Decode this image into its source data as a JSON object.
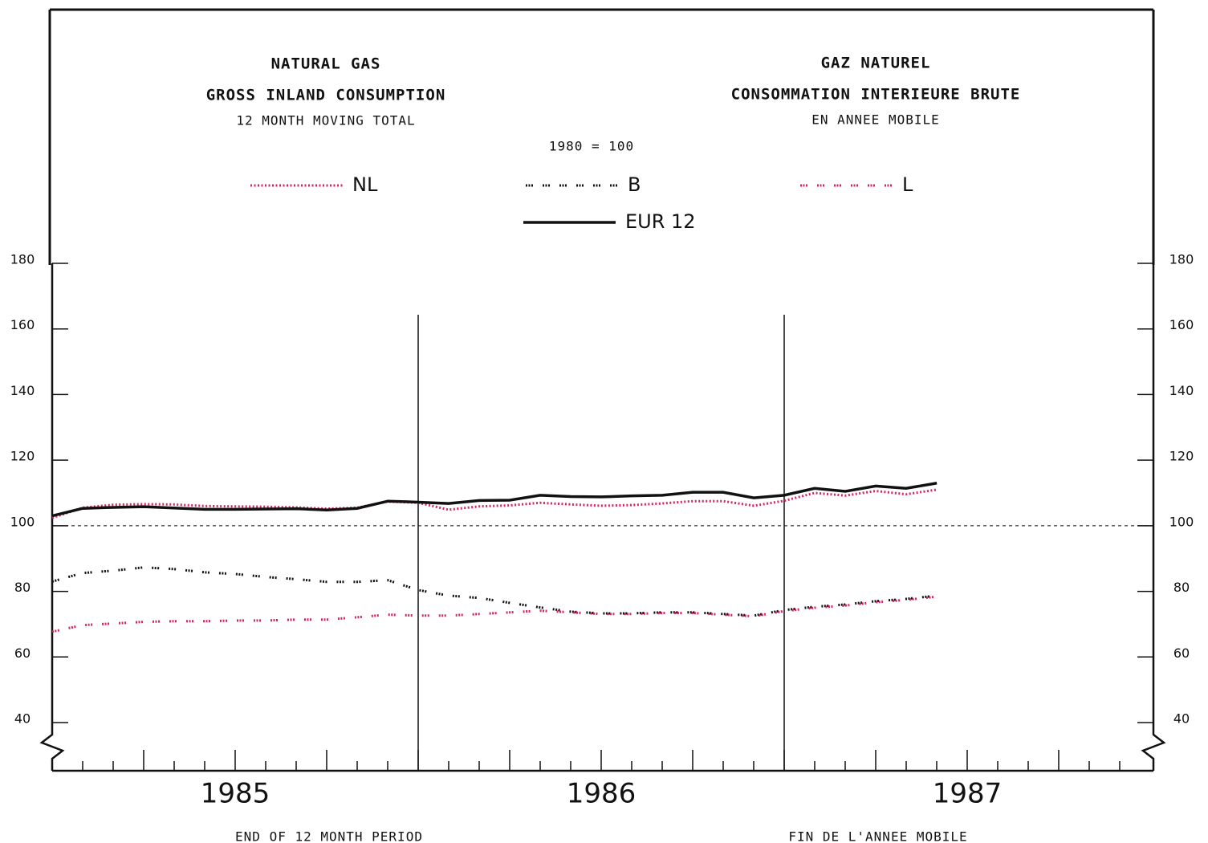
{
  "chart_data": {
    "type": "line",
    "title_en": "NATURAL GAS",
    "subtitle_en": "GROSS INLAND CONSUMPTION",
    "note_en": "12 MONTH MOVING TOTAL",
    "title_fr": "GAZ NATUREL",
    "subtitle_fr": "CONSOMMATION INTERIEURE BRUTE",
    "note_fr": "EN ANNEE MOBILE",
    "base": "1980 = 100",
    "xlabel_en": "END OF 12 MONTH PERIOD",
    "xlabel_fr": "FIN DE L'ANNEE MOBILE",
    "x": [
      1985,
      1985.083,
      1985.167,
      1985.25,
      1985.333,
      1985.417,
      1985.5,
      1985.583,
      1985.667,
      1985.75,
      1985.833,
      1985.917,
      1986,
      1986.083,
      1986.167,
      1986.25,
      1986.333,
      1986.417,
      1986.5,
      1986.583,
      1986.667,
      1986.75,
      1986.833,
      1986.917,
      1987,
      1987.083,
      1987.167,
      1987.25,
      1987.333,
      1987.417
    ],
    "series": [
      {
        "name": "NL",
        "color": "#d8245e",
        "style": "fine-plus",
        "values": [
          102.4,
          105.5,
          106.4,
          106.6,
          106.5,
          106.0,
          105.9,
          105.8,
          105.6,
          105.2,
          105.5,
          107.4,
          107.0,
          104.9,
          105.9,
          106.2,
          107.0,
          106.5,
          106.1,
          106.3,
          106.8,
          107.5,
          107.5,
          106.1,
          107.6,
          110.0,
          109.2,
          110.6,
          109.6,
          111.0
        ]
      },
      {
        "name": "B",
        "color": "#111111",
        "style": "grouped-plus",
        "values": [
          83.0,
          85.6,
          86.3,
          87.3,
          86.8,
          85.8,
          85.3,
          84.4,
          83.7,
          82.9,
          82.9,
          83.4,
          80.4,
          78.7,
          78.0,
          76.5,
          75.1,
          73.8,
          73.3,
          73.3,
          73.6,
          73.6,
          73.1,
          72.6,
          74.3,
          75.3,
          76.0,
          77.0,
          77.7,
          78.7
        ]
      },
      {
        "name": "L",
        "color": "#d8245e",
        "style": "grouped-plus",
        "values": [
          67.7,
          69.7,
          70.2,
          70.7,
          70.9,
          70.9,
          71.1,
          71.1,
          71.4,
          71.4,
          72.1,
          72.9,
          72.6,
          72.6,
          73.1,
          73.6,
          74.1,
          73.6,
          73.1,
          73.1,
          73.4,
          73.4,
          72.9,
          72.4,
          74.0,
          75.0,
          75.7,
          76.7,
          77.4,
          78.4
        ]
      },
      {
        "name": "EUR 12",
        "color": "#111111",
        "style": "solid",
        "values": [
          103.0,
          105.3,
          105.6,
          105.8,
          105.4,
          105.0,
          105.0,
          105.1,
          105.2,
          104.8,
          105.3,
          107.5,
          107.2,
          106.8,
          107.7,
          107.8,
          109.3,
          108.9,
          108.8,
          109.1,
          109.3,
          110.2,
          110.2,
          108.5,
          109.3,
          111.4,
          110.5,
          112.1,
          111.4,
          113.0
        ]
      }
    ],
    "xlim": [
      1985,
      1988
    ],
    "xticks": [
      {
        "value": 1985.5,
        "label": "1985"
      },
      {
        "value": 1986.5,
        "label": "1986"
      },
      {
        "value": 1987.5,
        "label": "1987"
      }
    ],
    "vlines": [
      1986,
      1987
    ],
    "ylim": [
      40,
      180
    ],
    "yticks": [
      40,
      60,
      80,
      100,
      120,
      140,
      160,
      180
    ],
    "y2lim": [
      40,
      180
    ],
    "y2ticks": [
      40,
      60,
      80,
      100,
      120,
      140,
      160,
      180
    ],
    "reference_line": 100
  }
}
